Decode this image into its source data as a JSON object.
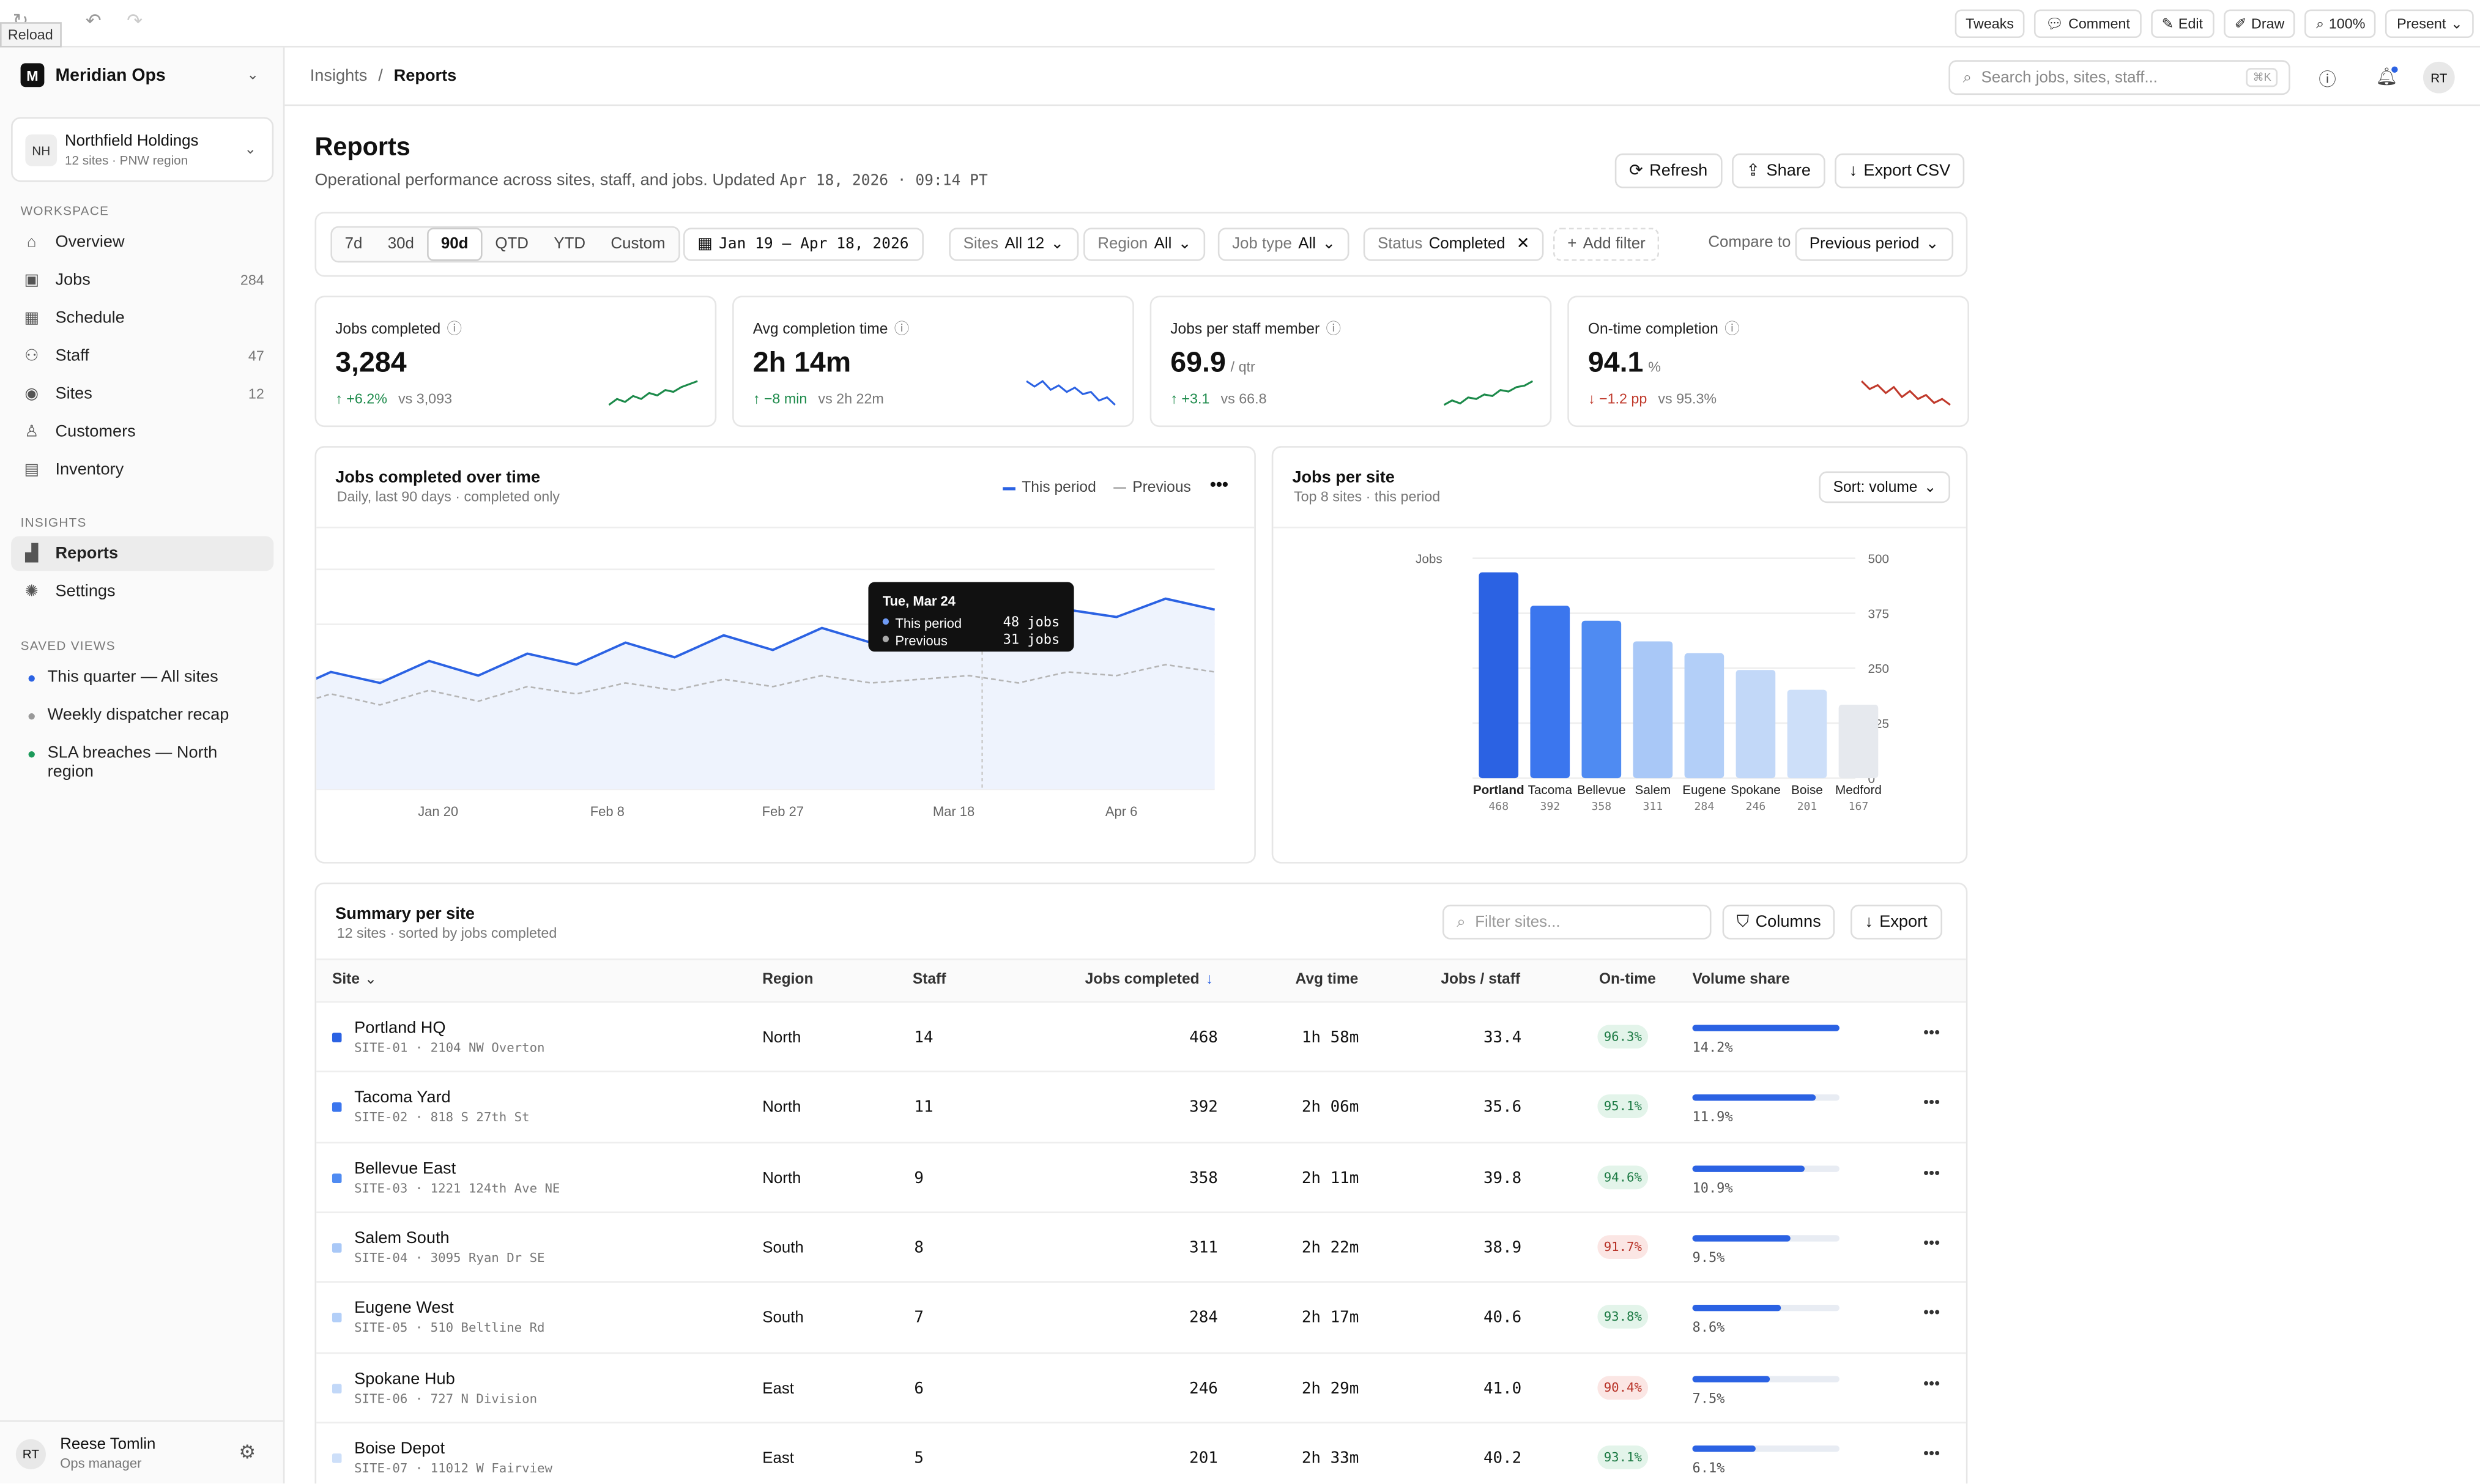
{
  "topbar": {
    "reload_tip": "Reload",
    "buttons": [
      {
        "icon": "sliders-icon",
        "label": "Tweaks"
      },
      {
        "icon": "comment-icon",
        "label": "Comment"
      },
      {
        "icon": "edit-icon",
        "label": "Edit"
      },
      {
        "icon": "pen-icon",
        "label": "Draw"
      },
      {
        "icon": "zoom-icon",
        "label": "100%"
      },
      {
        "icon": "chevron-down-icon",
        "label": "Present"
      }
    ]
  },
  "sidebar": {
    "brand": "Meridian Ops",
    "brand_initial": "M",
    "org": {
      "initials": "NH",
      "name": "Northfield Holdings",
      "sub": "12 sites · PNW region"
    },
    "workspace_label": "WORKSPACE",
    "items": [
      {
        "icon": "home-icon",
        "label": "Overview",
        "count": ""
      },
      {
        "icon": "briefcase-icon",
        "label": "Jobs",
        "count": "284"
      },
      {
        "icon": "calendar-icon",
        "label": "Schedule",
        "count": ""
      },
      {
        "icon": "users-icon",
        "label": "Staff",
        "count": "47"
      },
      {
        "icon": "pin-icon",
        "label": "Sites",
        "count": "12"
      },
      {
        "icon": "user-icon",
        "label": "Customers",
        "count": ""
      },
      {
        "icon": "box-icon",
        "label": "Inventory",
        "count": ""
      }
    ],
    "insights_label": "INSIGHTS",
    "insights": [
      {
        "icon": "chart-icon",
        "label": "Reports"
      },
      {
        "icon": "gear-icon",
        "label": "Settings"
      }
    ],
    "saved_label": "SAVED VIEWS",
    "saved": [
      {
        "label": "This quarter — All sites",
        "color": "#2b62e3"
      },
      {
        "label": "Weekly dispatcher recap",
        "color": "#999999"
      },
      {
        "label": "SLA breaches — North region",
        "color": "#1c9a5a"
      }
    ],
    "user": {
      "initials": "RT",
      "name": "Reese Tomlin",
      "role": "Ops manager"
    }
  },
  "header": {
    "crumb_parent": "Insights",
    "crumb_sep": "/",
    "crumb_current": "Reports",
    "search_placeholder": "Search jobs, sites, staff...",
    "search_kbd": "⌘K",
    "avatar": "RT"
  },
  "page": {
    "title": "Reports",
    "subtitle": "Operational performance across sites, staff, and jobs. Updated ",
    "updated": "Apr 18, 2026 · 09:14 PT",
    "actions": [
      "Refresh",
      "Share",
      "Export CSV"
    ]
  },
  "filters": {
    "ranges": [
      "7d",
      "30d",
      "90d",
      "QTD",
      "YTD",
      "Custom"
    ],
    "selected_range": "90d",
    "date": "Jan 19 – Apr 18, 2026",
    "chips": [
      {
        "k": "Sites",
        "v": "All 12"
      },
      {
        "k": "Region",
        "v": "All"
      },
      {
        "k": "Job type",
        "v": "All"
      }
    ],
    "status": {
      "k": "Status",
      "v": "Completed"
    },
    "add": "Add filter",
    "compare_label": "Compare to",
    "compare_value": "Previous period"
  },
  "kpis": [
    {
      "label": "Jobs completed",
      "value": "3,284",
      "unit": "",
      "delta": "+6.2%",
      "dir": "up",
      "vs": "vs 3,093",
      "spark": [
        2,
        3,
        2.5,
        3.5,
        3,
        4,
        3.6,
        4.5,
        4.2,
        5,
        5.5,
        6
      ]
    },
    {
      "label": "Avg completion time",
      "value": "2h 14m",
      "unit": "",
      "delta": "−8 min",
      "dir": "up",
      "vs": "vs 2h 22m",
      "spark": [
        6,
        5.5,
        6,
        5.2,
        5.6,
        5,
        5.4,
        4.8,
        5,
        4.2,
        4.5,
        3.8
      ]
    },
    {
      "label": "Jobs per staff member",
      "value": "69.9",
      "unit": "/ qtr",
      "delta": "+3.1",
      "dir": "up",
      "vs": "vs 66.8",
      "spark": [
        2,
        2.6,
        2.2,
        3,
        2.8,
        3.4,
        3.2,
        4,
        3.8,
        4.4,
        4.6,
        5.2
      ]
    },
    {
      "label": "On-time completion",
      "value": "94.1",
      "unit": "%",
      "delta": "−1.2 pp",
      "dir": "dn",
      "vs": "vs 95.3%",
      "spark": [
        5.8,
        5.4,
        5.6,
        5.2,
        5.5,
        5,
        5.3,
        4.9,
        5.1,
        4.7,
        4.9,
        4.6
      ]
    }
  ],
  "line_panel": {
    "title": "Jobs completed over time",
    "subtitle": "Daily, last 90 days · completed only",
    "legend_current": "This period",
    "legend_previous": "Previous",
    "tooltip": {
      "date": "Tue, Mar 24",
      "current_label": "This period",
      "current_value": "48 jobs",
      "previous_label": "Previous",
      "previous_value": "31 jobs"
    }
  },
  "bar_panel": {
    "title": "Jobs per site",
    "subtitle": "Top 8 sites · this period",
    "sort": "Sort: volume",
    "ylabel": "Jobs"
  },
  "chart_data": [
    {
      "type": "line",
      "title": "Jobs completed over time",
      "ylim": [
        0,
        60
      ],
      "yticks": [
        0,
        15,
        30,
        45,
        60
      ],
      "xticks": [
        "Jan 20",
        "Feb 8",
        "Feb 27",
        "Mar 18",
        "Apr 6"
      ],
      "series": [
        {
          "name": "This period",
          "values": [
            24,
            28,
            22,
            29,
            26,
            32,
            29,
            35,
            31,
            37,
            34,
            40,
            36,
            42,
            38,
            44,
            40,
            45,
            48,
            43,
            49,
            47,
            52,
            49
          ]
        },
        {
          "name": "Previous",
          "values": [
            21,
            23,
            20,
            24,
            22,
            26,
            23,
            27,
            24,
            28,
            26,
            29,
            27,
            30,
            28,
            31,
            29,
            30,
            31,
            29,
            32,
            31,
            34,
            32
          ]
        }
      ]
    },
    {
      "type": "bar",
      "title": "Jobs per site",
      "ylim": [
        0,
        500
      ],
      "yticks": [
        0,
        125,
        250,
        375,
        500
      ],
      "categories": [
        "Portland",
        "Tacoma",
        "Bellevue",
        "Salem",
        "Eugene",
        "Spokane",
        "Boise",
        "Medford"
      ],
      "values": [
        468,
        392,
        358,
        311,
        284,
        246,
        201,
        167
      ]
    }
  ],
  "summary": {
    "title": "Summary per site",
    "subtitle": "12 sites · sorted by jobs completed",
    "filter_placeholder": "Filter sites...",
    "columns_btn": "Columns",
    "export_btn": "Export",
    "headers": [
      "Site",
      "Region",
      "Staff",
      "Jobs completed",
      "Avg time",
      "Jobs / staff",
      "On-time",
      "Volume share"
    ],
    "rows": [
      {
        "name": "Portland HQ",
        "addr": "SITE-01 · 2104 NW Overton",
        "region": "North",
        "staff": "14",
        "jobs": "468",
        "avg": "1h 58m",
        "per": "33.4",
        "ontime": "96.3%",
        "good": true,
        "share": "14.2%",
        "share_v": 14.2,
        "color": "#2b62e3"
      },
      {
        "name": "Tacoma Yard",
        "addr": "SITE-02 · 818 S 27th St",
        "region": "North",
        "staff": "11",
        "jobs": "392",
        "avg": "2h 06m",
        "per": "35.6",
        "ontime": "95.1%",
        "good": true,
        "share": "11.9%",
        "share_v": 11.9,
        "color": "#3b76ee"
      },
      {
        "name": "Bellevue East",
        "addr": "SITE-03 · 1221 124th Ave NE",
        "region": "North",
        "staff": "9",
        "jobs": "358",
        "avg": "2h 11m",
        "per": "39.8",
        "ontime": "94.6%",
        "good": true,
        "share": "10.9%",
        "share_v": 10.9,
        "color": "#4f8bf2"
      },
      {
        "name": "Salem South",
        "addr": "SITE-04 · 3095 Ryan Dr SE",
        "region": "South",
        "staff": "8",
        "jobs": "311",
        "avg": "2h 22m",
        "per": "38.9",
        "ontime": "91.7%",
        "good": false,
        "share": "9.5%",
        "share_v": 9.5,
        "color": "#a9c8f7"
      },
      {
        "name": "Eugene West",
        "addr": "SITE-05 · 510 Beltline Rd",
        "region": "South",
        "staff": "7",
        "jobs": "284",
        "avg": "2h 17m",
        "per": "40.6",
        "ontime": "93.8%",
        "good": true,
        "share": "8.6%",
        "share_v": 8.6,
        "color": "#b3cff8"
      },
      {
        "name": "Spokane Hub",
        "addr": "SITE-06 · 727 N Division",
        "region": "East",
        "staff": "6",
        "jobs": "246",
        "avg": "2h 29m",
        "per": "41.0",
        "ontime": "90.4%",
        "good": false,
        "share": "7.5%",
        "share_v": 7.5,
        "color": "#c2d8f8"
      },
      {
        "name": "Boise Depot",
        "addr": "SITE-07 · 11012 W Fairview",
        "region": "East",
        "staff": "5",
        "jobs": "201",
        "avg": "2h 33m",
        "per": "40.2",
        "ontime": "93.1%",
        "good": true,
        "share": "6.1%",
        "share_v": 6.1,
        "color": "#cddff9"
      }
    ]
  }
}
